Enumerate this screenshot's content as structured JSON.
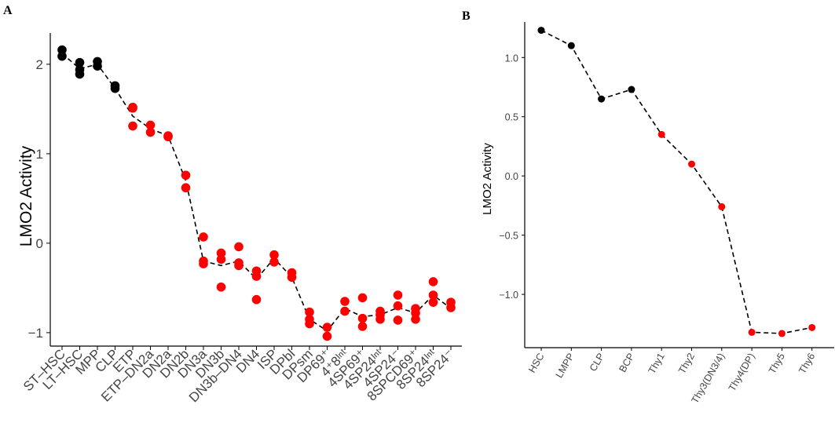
{
  "chart_data": [
    {
      "panel": "A",
      "type": "scatter",
      "ylabel": "LMO2 Activity",
      "xlabel": "",
      "ylim": [
        -1.15,
        2.35
      ],
      "yticks": [
        -1,
        0,
        1,
        2
      ],
      "grid": false,
      "categories": [
        "ST–HSC",
        "LT–HSC",
        "MPP",
        "CLP",
        "ETP",
        "ETP–DN2a",
        "DN2a",
        "DN2b",
        "DN3a",
        "DN3b",
        "DN3b–DN4",
        "DN4",
        "ISP",
        "DPbl",
        "DPsm",
        "DP69⁺",
        "4⁺8ᴵⁿᵗ",
        "4SP69⁺",
        "4SP24ᴵⁿᵗ",
        "4SP24⁻",
        "8SPCD69⁺",
        "8SP24ᴵⁿᵗ",
        "8SP24⁻"
      ],
      "trend": [
        2.12,
        1.95,
        2.0,
        1.73,
        1.42,
        1.28,
        1.2,
        0.7,
        -0.2,
        -0.25,
        -0.2,
        -0.4,
        -0.17,
        -0.38,
        -0.85,
        -0.98,
        -0.73,
        -0.82,
        -0.8,
        -0.72,
        -0.78,
        -0.58,
        -0.73
      ],
      "points": [
        {
          "cat": 0,
          "y": 2.16,
          "color": "#000000"
        },
        {
          "cat": 0,
          "y": 2.09,
          "color": "#000000"
        },
        {
          "cat": 1,
          "y": 2.02,
          "color": "#000000"
        },
        {
          "cat": 1,
          "y": 1.94,
          "color": "#000000"
        },
        {
          "cat": 1,
          "y": 1.89,
          "color": "#000000"
        },
        {
          "cat": 2,
          "y": 2.03,
          "color": "#000000"
        },
        {
          "cat": 2,
          "y": 1.98,
          "color": "#000000"
        },
        {
          "cat": 3,
          "y": 1.76,
          "color": "#000000"
        },
        {
          "cat": 3,
          "y": 1.73,
          "color": "#000000"
        },
        {
          "cat": 4,
          "y": 1.52,
          "color": "#ff0000"
        },
        {
          "cat": 4,
          "y": 1.51,
          "color": "#ff0000"
        },
        {
          "cat": 4,
          "y": 1.31,
          "color": "#ff0000"
        },
        {
          "cat": 5,
          "y": 1.32,
          "color": "#ff0000"
        },
        {
          "cat": 5,
          "y": 1.24,
          "color": "#ff0000"
        },
        {
          "cat": 6,
          "y": 1.2,
          "color": "#ff0000"
        },
        {
          "cat": 6,
          "y": 1.19,
          "color": "#ff0000"
        },
        {
          "cat": 7,
          "y": 0.76,
          "color": "#ff0000"
        },
        {
          "cat": 7,
          "y": 0.62,
          "color": "#ff0000"
        },
        {
          "cat": 8,
          "y": 0.07,
          "color": "#ff0000"
        },
        {
          "cat": 8,
          "y": -0.2,
          "color": "#ff0000"
        },
        {
          "cat": 8,
          "y": -0.23,
          "color": "#ff0000"
        },
        {
          "cat": 9,
          "y": -0.11,
          "color": "#ff0000"
        },
        {
          "cat": 9,
          "y": -0.18,
          "color": "#ff0000"
        },
        {
          "cat": 9,
          "y": -0.49,
          "color": "#ff0000"
        },
        {
          "cat": 10,
          "y": -0.04,
          "color": "#ff0000"
        },
        {
          "cat": 10,
          "y": -0.22,
          "color": "#ff0000"
        },
        {
          "cat": 10,
          "y": -0.25,
          "color": "#ff0000"
        },
        {
          "cat": 11,
          "y": -0.31,
          "color": "#ff0000"
        },
        {
          "cat": 11,
          "y": -0.37,
          "color": "#ff0000"
        },
        {
          "cat": 11,
          "y": -0.63,
          "color": "#ff0000"
        },
        {
          "cat": 12,
          "y": -0.13,
          "color": "#ff0000"
        },
        {
          "cat": 12,
          "y": -0.21,
          "color": "#ff0000"
        },
        {
          "cat": 13,
          "y": -0.33,
          "color": "#ff0000"
        },
        {
          "cat": 13,
          "y": -0.38,
          "color": "#ff0000"
        },
        {
          "cat": 14,
          "y": -0.77,
          "color": "#ff0000"
        },
        {
          "cat": 14,
          "y": -0.85,
          "color": "#ff0000"
        },
        {
          "cat": 14,
          "y": -0.9,
          "color": "#ff0000"
        },
        {
          "cat": 15,
          "y": -0.94,
          "color": "#ff0000"
        },
        {
          "cat": 15,
          "y": -1.04,
          "color": "#ff0000"
        },
        {
          "cat": 16,
          "y": -0.65,
          "color": "#ff0000"
        },
        {
          "cat": 16,
          "y": -0.76,
          "color": "#ff0000"
        },
        {
          "cat": 17,
          "y": -0.61,
          "color": "#ff0000"
        },
        {
          "cat": 17,
          "y": -0.84,
          "color": "#ff0000"
        },
        {
          "cat": 17,
          "y": -0.93,
          "color": "#ff0000"
        },
        {
          "cat": 18,
          "y": -0.76,
          "color": "#ff0000"
        },
        {
          "cat": 18,
          "y": -0.8,
          "color": "#ff0000"
        },
        {
          "cat": 18,
          "y": -0.85,
          "color": "#ff0000"
        },
        {
          "cat": 19,
          "y": -0.58,
          "color": "#ff0000"
        },
        {
          "cat": 19,
          "y": -0.7,
          "color": "#ff0000"
        },
        {
          "cat": 19,
          "y": -0.86,
          "color": "#ff0000"
        },
        {
          "cat": 20,
          "y": -0.73,
          "color": "#ff0000"
        },
        {
          "cat": 20,
          "y": -0.78,
          "color": "#ff0000"
        },
        {
          "cat": 20,
          "y": -0.85,
          "color": "#ff0000"
        },
        {
          "cat": 21,
          "y": -0.43,
          "color": "#ff0000"
        },
        {
          "cat": 21,
          "y": -0.58,
          "color": "#ff0000"
        },
        {
          "cat": 21,
          "y": -0.66,
          "color": "#ff0000"
        },
        {
          "cat": 22,
          "y": -0.66,
          "color": "#ff0000"
        },
        {
          "cat": 22,
          "y": -0.72,
          "color": "#ff0000"
        }
      ]
    },
    {
      "panel": "B",
      "type": "line",
      "ylabel": "LMO2 Activity",
      "xlabel": "",
      "ylim": [
        -1.45,
        1.3
      ],
      "yticks": [
        -1.0,
        -0.5,
        0.0,
        0.5,
        1.0
      ],
      "ytick_labels": [
        "−1.0",
        "−0.5",
        "0.0",
        "0.5",
        "1.0"
      ],
      "grid": false,
      "categories": [
        "HSC",
        "LMPP",
        "CLP",
        "BCP",
        "Thy1",
        "Thy2",
        "Thy3(DN3/4)",
        "Thy4(DP)",
        "Thy5",
        "Thy6"
      ],
      "values": [
        1.23,
        1.1,
        0.65,
        0.73,
        0.35,
        0.1,
        -0.26,
        -1.32,
        -1.33,
        -1.28
      ],
      "colors": [
        "#000000",
        "#000000",
        "#000000",
        "#000000",
        "#ff0000",
        "#ff0000",
        "#ff0000",
        "#ff0000",
        "#ff0000",
        "#ff0000"
      ]
    }
  ],
  "panels": {
    "a": {
      "label": "A",
      "ylabel": "LMO2 Activity",
      "yticks": [
        "−1",
        "0",
        "1",
        "2"
      ]
    },
    "b": {
      "label": "B",
      "ylabel": "LMO2 Activity"
    }
  }
}
